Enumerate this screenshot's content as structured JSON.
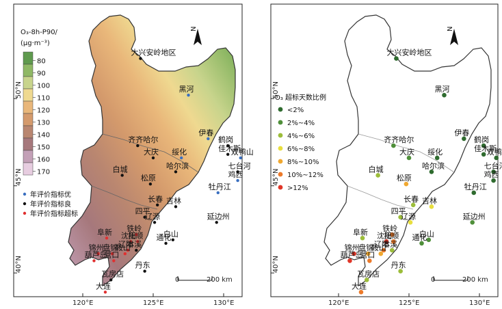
{
  "left_map": {
    "legend_title_line1": "O₃-8h-P90/",
    "legend_title_line2": "(μg·m⁻³)",
    "color_ramp": [
      {
        "label": "80",
        "color": "#5f9a4e"
      },
      {
        "label": "90",
        "color": "#8fb865"
      },
      {
        "label": "100",
        "color": "#c8d48c"
      },
      {
        "label": "110",
        "color": "#efd990"
      },
      {
        "label": "120",
        "color": "#e9b77a"
      },
      {
        "label": "130",
        "color": "#d49a6c"
      },
      {
        "label": "140",
        "color": "#b98670"
      },
      {
        "label": "150",
        "color": "#a6787c"
      },
      {
        "label": "160",
        "color": "#c3a0b7"
      },
      {
        "label": "170",
        "color": "#e7cde0"
      }
    ],
    "station_legend": [
      {
        "label": "年评价指标优",
        "color": "#3a6fc0"
      },
      {
        "label": "年评价指标良",
        "color": "#111111"
      },
      {
        "label": "年评价指标超标",
        "color": "#e03030"
      }
    ],
    "scale_label": "200 km",
    "scale_zero": "0"
  },
  "right_map": {
    "legend_title": "O₃ 超标天数比例",
    "classes": [
      {
        "label": "<2%",
        "color": "#2f6b2f"
      },
      {
        "label": "2%~4%",
        "color": "#4f8f3a"
      },
      {
        "label": "4%~6%",
        "color": "#9cbd3a"
      },
      {
        "label": "6%~8%",
        "color": "#e8de3e"
      },
      {
        "label": "8%~10%",
        "color": "#f0a830"
      },
      {
        "label": "10%~12%",
        "color": "#ec7a2a"
      },
      {
        "label": ">12%",
        "color": "#e03628"
      }
    ],
    "scale_label": "200 km",
    "scale_zero": "0"
  },
  "north_label": "N",
  "axes": {
    "lon_ticks": [
      "120°E",
      "125°E",
      "130°E"
    ],
    "lat_ticks": [
      "40°N",
      "45°N",
      "50°N"
    ]
  },
  "cities": [
    {
      "name": "大兴安岭地区",
      "lon": 124.1,
      "lat": 52.3,
      "left": "good",
      "right": "<2%"
    },
    {
      "name": "黑河",
      "lon": 127.5,
      "lat": 50.2,
      "left": "excellent",
      "right": "<2%"
    },
    {
      "name": "伊春",
      "lon": 128.9,
      "lat": 47.7,
      "left": "excellent",
      "right": "<2%"
    },
    {
      "name": "鹤岗",
      "lon": 130.3,
      "lat": 47.3,
      "left": "good",
      "right": "<2%"
    },
    {
      "name": "双鸭山",
      "lon": 131.2,
      "lat": 46.6,
      "left": "excellent",
      "right": "<2%"
    },
    {
      "name": "齐齐哈尔",
      "lon": 123.9,
      "lat": 47.3,
      "left": "good",
      "right": "2%~4%"
    },
    {
      "name": "绥化",
      "lon": 127.0,
      "lat": 46.6,
      "left": "excellent",
      "right": "<2%"
    },
    {
      "name": "佳木斯",
      "lon": 130.3,
      "lat": 46.8,
      "left": "good",
      "right": "<2%"
    },
    {
      "name": "七台河",
      "lon": 131.0,
      "lat": 45.8,
      "left": "good",
      "right": "<2%"
    },
    {
      "name": "大庆",
      "lon": 125.0,
      "lat": 46.6,
      "left": "good",
      "right": "2%~4%"
    },
    {
      "name": "鸡西",
      "lon": 131.0,
      "lat": 45.3,
      "left": "excellent",
      "right": "<2%"
    },
    {
      "name": "哈尔滨",
      "lon": 126.6,
      "lat": 45.8,
      "left": "good",
      "right": "<2%"
    },
    {
      "name": "牡丹江",
      "lon": 129.6,
      "lat": 44.6,
      "left": "excellent",
      "right": "<2%"
    },
    {
      "name": "白城",
      "lon": 122.8,
      "lat": 45.6,
      "left": "good",
      "right": "4%~6%"
    },
    {
      "name": "松原",
      "lon": 124.8,
      "lat": 45.1,
      "left": "good",
      "right": "8%~10%"
    },
    {
      "name": "长春",
      "lon": 125.3,
      "lat": 43.9,
      "left": "good",
      "right": "4%~6%"
    },
    {
      "name": "吉林",
      "lon": 126.6,
      "lat": 43.8,
      "left": "good",
      "right": "6%~8%"
    },
    {
      "name": "延边州",
      "lon": 129.5,
      "lat": 42.9,
      "left": "good",
      "right": "2%~4%"
    },
    {
      "name": "四平",
      "lon": 124.4,
      "lat": 43.2,
      "left": "good",
      "right": "4%~6%"
    },
    {
      "name": "辽源",
      "lon": 125.1,
      "lat": 42.9,
      "left": "good",
      "right": "6%~8%"
    },
    {
      "name": "铁岭",
      "lon": 123.8,
      "lat": 42.2,
      "left": "exceed",
      "right": "10%~12%"
    },
    {
      "name": "白山",
      "lon": 126.4,
      "lat": 41.9,
      "left": "good",
      "right": "2%~4%"
    },
    {
      "name": "阜新",
      "lon": 121.7,
      "lat": 42.0,
      "left": "exceed",
      "right": "4%~6%"
    },
    {
      "name": "沈阳",
      "lon": 123.4,
      "lat": 41.8,
      "left": "exceed",
      "right": ">12%"
    },
    {
      "name": "抚顺",
      "lon": 123.9,
      "lat": 41.8,
      "left": "exceed",
      "right": "10%~12%"
    },
    {
      "name": "通化",
      "lon": 125.9,
      "lat": 41.7,
      "left": "good",
      "right": "2%~4%"
    },
    {
      "name": "辽阳",
      "lon": 123.2,
      "lat": 41.3,
      "left": "exceed",
      "right": "10%~12%"
    },
    {
      "name": "本溪",
      "lon": 123.8,
      "lat": 41.3,
      "left": "good",
      "right": "4%~6%"
    },
    {
      "name": "盘锦",
      "lon": 122.1,
      "lat": 41.1,
      "left": "exceed",
      "right": "8%~10%"
    },
    {
      "name": "锦州",
      "lon": 121.1,
      "lat": 41.1,
      "left": "exceed",
      "right": ">12%"
    },
    {
      "name": "鞍山",
      "lon": 123.0,
      "lat": 41.1,
      "left": "exceed",
      "right": "8%~10%"
    },
    {
      "name": "营口",
      "lon": 122.2,
      "lat": 40.7,
      "left": "exceed",
      "right": "10%~12%"
    },
    {
      "name": "葫芦岛",
      "lon": 120.8,
      "lat": 40.7,
      "left": "exceed",
      "right": ">12%"
    },
    {
      "name": "丹东",
      "lon": 124.4,
      "lat": 40.1,
      "left": "good",
      "right": "4%~6%"
    },
    {
      "name": "瓦房店",
      "lon": 122.0,
      "lat": 39.6,
      "left": "good",
      "right": "4%~6%"
    },
    {
      "name": "大连",
      "lon": 121.6,
      "lat": 38.9,
      "left": "exceed",
      "right": "10%~12%"
    }
  ]
}
